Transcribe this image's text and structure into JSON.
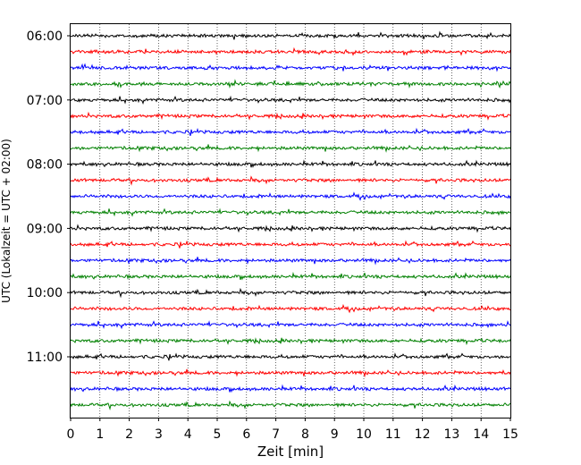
{
  "chart_data": {
    "type": "line",
    "chart_kind": "helicorder",
    "xlabel": "Zeit  [min]",
    "ylabel": "UTC (Lokalzeit = UTC + 02:00)",
    "xlim": [
      0,
      15
    ],
    "x_ticks": [
      "0",
      "1",
      "2",
      "3",
      "4",
      "5",
      "6",
      "7",
      "8",
      "9",
      "10",
      "11",
      "12",
      "13",
      "14",
      "15"
    ],
    "y_ticks": [
      "06:00",
      "07:00",
      "08:00",
      "09:00",
      "10:00",
      "11:00"
    ],
    "grid": "vertical-dotted",
    "trace_colors": [
      "#000000",
      "#ff0000",
      "#0000ff",
      "#008000"
    ],
    "traces_per_hour": 4,
    "trace_count": 24
  }
}
